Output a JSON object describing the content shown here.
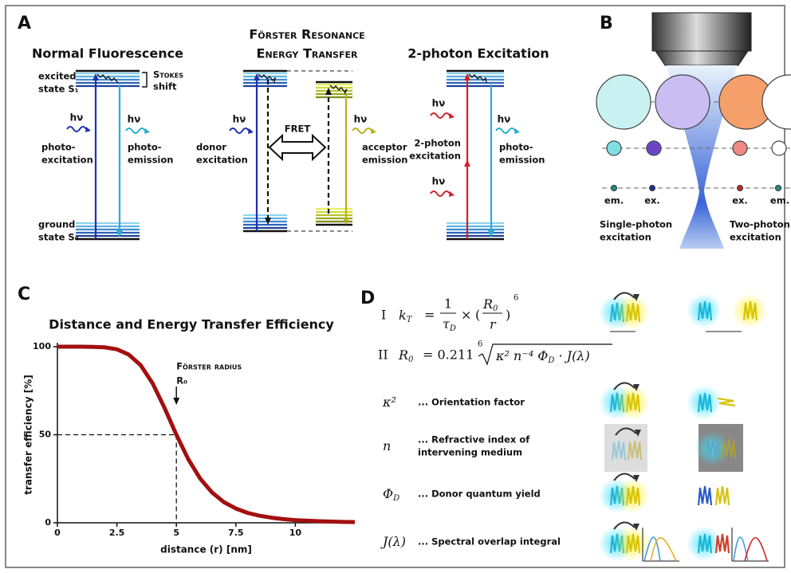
{
  "panel_a": {
    "label": "A",
    "normal": {
      "title": "Normal Fluorescence",
      "excited_state": [
        "excited",
        "state S₁"
      ],
      "stokes_shift": [
        "Stokes",
        "shift"
      ],
      "excitation_photon": "hν",
      "emission_photon": "hν",
      "excitation": [
        "photo-",
        "excitation"
      ],
      "emission": [
        "photo-",
        "emission"
      ],
      "ground_state": [
        "ground",
        "state S₀"
      ]
    },
    "fret": {
      "title": [
        "Förster Resonance",
        "Energy Transfer"
      ],
      "excitation_photon": "hν",
      "excitation": [
        "donor",
        "excitation"
      ],
      "transfer": "FRET",
      "emission_photon": "hν",
      "emission": [
        "acceptor",
        "emission"
      ]
    },
    "two_photon": {
      "title": "2-photon Excitation",
      "excitation_photons": [
        "hν",
        "hν"
      ],
      "excitation": [
        "2-photon",
        "excitation"
      ],
      "emission_photon": "hν",
      "emission": [
        "photo-",
        "emission"
      ]
    }
  },
  "panel_b": {
    "label": "B",
    "row_labels": [
      "em.",
      "ex.",
      "ex.",
      "em."
    ],
    "captions": [
      [
        "Single-photon",
        "excitation"
      ],
      [
        "Two-photon",
        "excitation"
      ]
    ]
  },
  "chart_data": {
    "type": "line",
    "panel_label": "C",
    "title": "Distance and Energy Transfer Efficiency",
    "x_label": "distance (r)  [nm]",
    "y_label": "transfer efficiency  [%]",
    "x": [
      0,
      0.5,
      1,
      1.5,
      2,
      2.5,
      3,
      3.5,
      4,
      4.5,
      5,
      5.5,
      6,
      6.5,
      7,
      7.5,
      8,
      8.5,
      9,
      9.5,
      10,
      11,
      12,
      12.5
    ],
    "values": [
      100,
      100,
      100,
      99.9,
      99.6,
      98.5,
      95.5,
      89.5,
      79.2,
      65.3,
      50,
      36.1,
      25.1,
      17.2,
      11.7,
      8.1,
      5.6,
      4.0,
      2.9,
      2.1,
      1.5,
      0.9,
      0.5,
      0.4
    ],
    "color": "#a30f0f",
    "xlim": [
      0,
      12.5
    ],
    "xticks": [
      0,
      2.5,
      5,
      7.5,
      10
    ],
    "ylim": [
      0,
      100
    ],
    "yticks": [
      0,
      50,
      100
    ],
    "annotation": {
      "text": "Förster radius",
      "symbol": "R₀",
      "x": 5,
      "y": 50
    }
  },
  "panel_d": {
    "label": "D",
    "formula_1": {
      "numeral": "I",
      "lhs": "k",
      "lhs_sub": "T",
      "equals": "=",
      "numerator": "1",
      "denominator": "τ",
      "denominator_sub": "D",
      "times": "×",
      "open": "(",
      "inner_num": "R",
      "inner_num_sub": "0",
      "inner_den": "r",
      "close": ")",
      "exponent": "6"
    },
    "formula_2": {
      "numeral": "II",
      "lhs": "R",
      "lhs_sub": "0",
      "rhs": "= 0.211",
      "root_index": "6",
      "radicand": "κ² n⁻⁴  Φ",
      "radicand_sub": "D",
      "radicand_end": " · J(λ)"
    },
    "legend": [
      {
        "symbol": "κ²",
        "text": [
          "... Orientation factor"
        ]
      },
      {
        "symbol": "n",
        "text": [
          "... Refractive index of",
          "intervening medium"
        ]
      },
      {
        "symbol": "Φ",
        "symbol_sub": "D",
        "text": [
          "... Donor quantum yield"
        ]
      },
      {
        "symbol": "J(λ)",
        "text": [
          "... Spectral overlap integral"
        ]
      }
    ]
  }
}
